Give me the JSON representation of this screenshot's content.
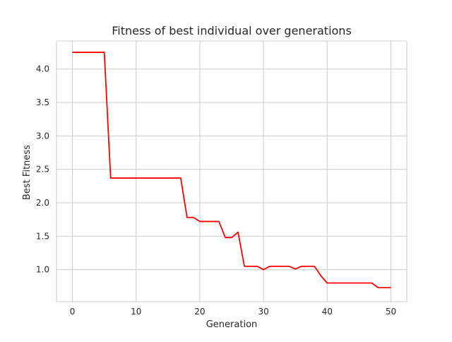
{
  "chart_data": {
    "type": "line",
    "title": "Fitness of best individual over generations",
    "xlabel": "Generation",
    "ylabel": "Best Fitness",
    "xlim": [
      -2.5,
      52.5
    ],
    "ylim": [
      0.52,
      4.42
    ],
    "xticks": [
      0,
      10,
      20,
      30,
      40,
      50
    ],
    "yticks": [
      1.0,
      1.5,
      2.0,
      2.5,
      3.0,
      3.5,
      4.0
    ],
    "xtick_labels": [
      "0",
      "10",
      "20",
      "30",
      "40",
      "50"
    ],
    "ytick_labels": [
      "1.0",
      "1.5",
      "2.0",
      "2.5",
      "3.0",
      "3.5",
      "4.0"
    ],
    "grid": true,
    "series": [
      {
        "color": "#ff0000",
        "x": [
          0,
          1,
          2,
          3,
          4,
          5,
          6,
          7,
          8,
          9,
          10,
          11,
          12,
          13,
          14,
          15,
          16,
          17,
          18,
          19,
          20,
          21,
          22,
          23,
          24,
          25,
          26,
          27,
          28,
          29,
          30,
          31,
          32,
          33,
          34,
          35,
          36,
          37,
          38,
          39,
          40,
          41,
          42,
          43,
          44,
          45,
          46,
          47,
          48,
          49,
          50
        ],
        "y": [
          4.25,
          4.25,
          4.25,
          4.25,
          4.25,
          4.25,
          2.37,
          2.37,
          2.37,
          2.37,
          2.37,
          2.37,
          2.37,
          2.37,
          2.37,
          2.37,
          2.37,
          2.37,
          1.78,
          1.78,
          1.72,
          1.72,
          1.72,
          1.72,
          1.48,
          1.48,
          1.56,
          1.05,
          1.05,
          1.05,
          1.0,
          1.05,
          1.05,
          1.05,
          1.05,
          1.01,
          1.05,
          1.05,
          1.05,
          0.91,
          0.8,
          0.8,
          0.8,
          0.8,
          0.8,
          0.8,
          0.8,
          0.8,
          0.73,
          0.73,
          0.73
        ]
      }
    ]
  }
}
